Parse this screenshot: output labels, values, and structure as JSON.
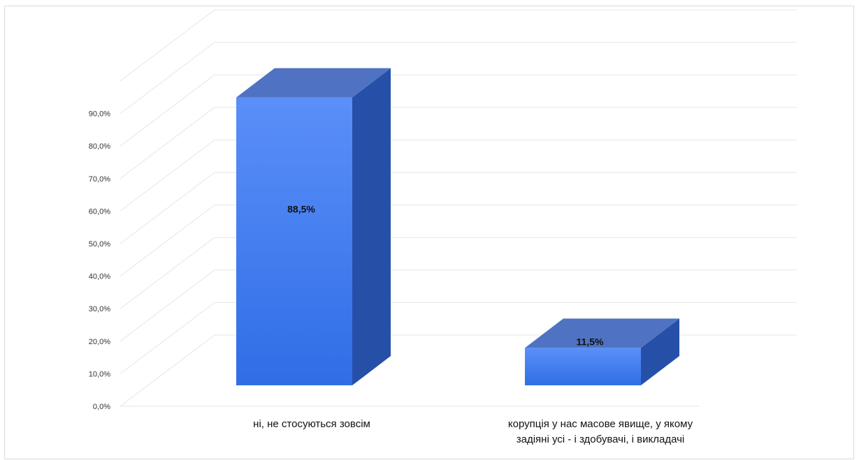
{
  "chart_data": {
    "type": "bar",
    "style": "3d-column",
    "categories": [
      [
        "ні, не стосуються зовсім"
      ],
      [
        "корупція у нас масове явище, у якому",
        "задіяні усі - і здобувачі, і викладачі"
      ]
    ],
    "values": [
      88.5,
      11.5
    ],
    "data_labels": [
      "88,5%",
      "11,5%"
    ],
    "y_ticks": [
      "0,0%",
      "10,0%",
      "20,0%",
      "30,0%",
      "40,0%",
      "50,0%",
      "60,0%",
      "70,0%",
      "80,0%",
      "90,0%"
    ],
    "ylim": [
      0,
      100
    ],
    "grid": true,
    "colors": {
      "front_top": "#5b8ff9",
      "front_bottom": "#2f6ee6",
      "top_face": "#4f73c2",
      "side_face": "#2650a8",
      "grid": "#e6e6e6"
    }
  }
}
